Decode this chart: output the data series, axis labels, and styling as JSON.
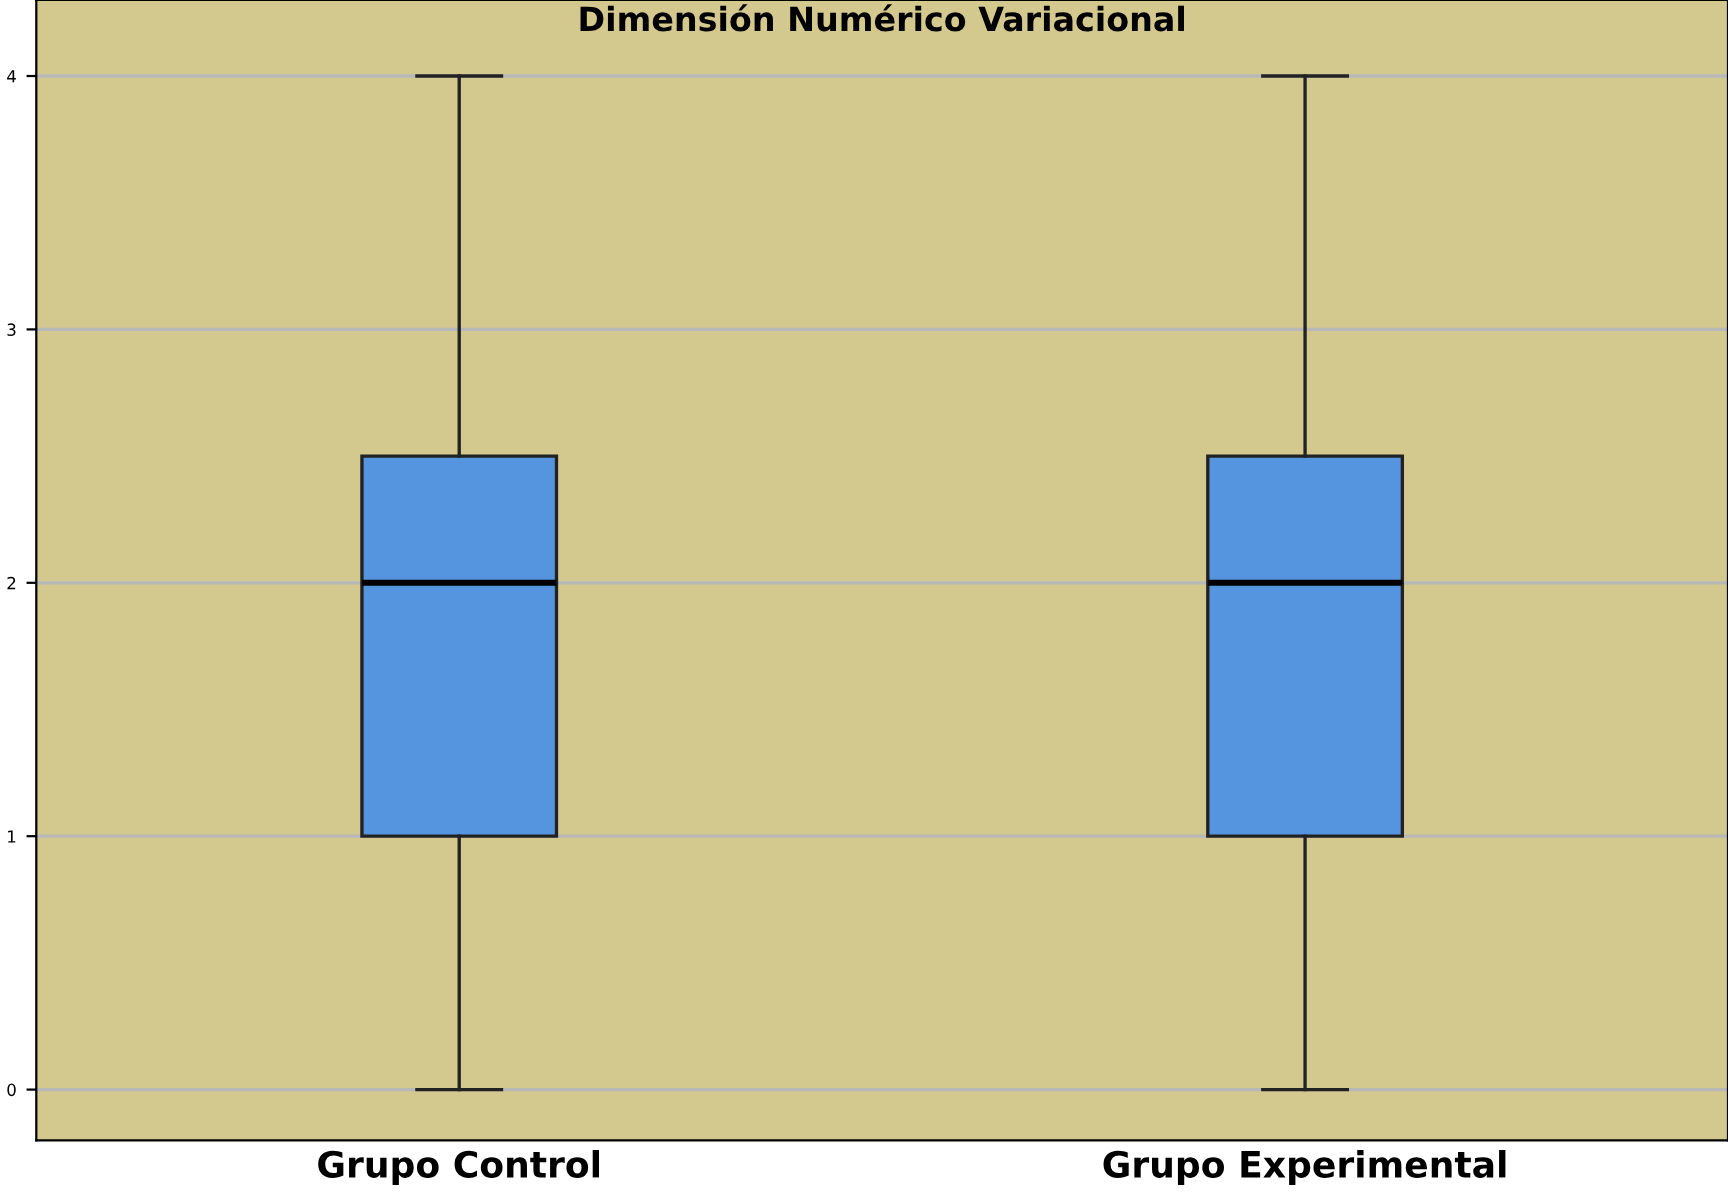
{
  "chart_data": {
    "type": "box",
    "title": "Dimensión Numérico Variacional",
    "categories": [
      "Grupo Control",
      "Grupo Experimental"
    ],
    "boxes": [
      {
        "low": 0,
        "q1": 1,
        "median": 2,
        "q3": 2.5,
        "high": 4
      },
      {
        "low": 0,
        "q1": 1,
        "median": 2,
        "q3": 2.5,
        "high": 4
      }
    ],
    "color": "#5595e0",
    "ylim": [
      -0.2,
      4.3
    ],
    "yticks": [
      0,
      1,
      2,
      3,
      4
    ],
    "grid": "y"
  }
}
